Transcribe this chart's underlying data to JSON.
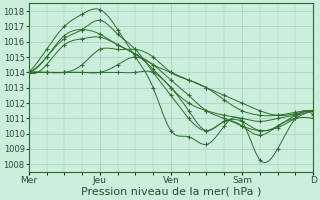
{
  "bg_color": "#cceedd",
  "grid_color": "#aaccbb",
  "line_color": "#2d6e2d",
  "marker_color": "#2d6e2d",
  "xlabel": "Pression niveau de la mer( hPa )",
  "xlabel_fontsize": 8,
  "ylim": [
    1007.5,
    1018.5
  ],
  "yticks": [
    1008,
    1009,
    1010,
    1011,
    1012,
    1013,
    1014,
    1015,
    1016,
    1017,
    1018
  ],
  "xtick_labels": [
    "Mer",
    "Jeu",
    "Ven",
    "Sam",
    "D"
  ],
  "xtick_positions": [
    0,
    24,
    48,
    72,
    96
  ],
  "xlim": [
    0,
    96
  ],
  "series": [
    {
      "points": [
        [
          0,
          1014.0
        ],
        [
          6,
          1014.5
        ],
        [
          12,
          1015.8
        ],
        [
          18,
          1016.2
        ],
        [
          24,
          1016.3
        ],
        [
          30,
          1015.8
        ],
        [
          36,
          1015.2
        ],
        [
          42,
          1014.5
        ],
        [
          48,
          1013.5
        ],
        [
          54,
          1012.5
        ],
        [
          60,
          1011.5
        ],
        [
          66,
          1011.0
        ],
        [
          72,
          1010.5
        ],
        [
          78,
          1010.2
        ],
        [
          84,
          1010.4
        ],
        [
          90,
          1011.0
        ],
        [
          96,
          1011.5
        ]
      ],
      "lw": 0.7
    },
    {
      "points": [
        [
          0,
          1014.0
        ],
        [
          6,
          1015.0
        ],
        [
          12,
          1016.2
        ],
        [
          18,
          1016.8
        ],
        [
          24,
          1017.4
        ],
        [
          30,
          1016.5
        ],
        [
          36,
          1015.5
        ],
        [
          42,
          1014.0
        ],
        [
          48,
          1012.5
        ],
        [
          54,
          1011.0
        ],
        [
          60,
          1010.2
        ],
        [
          66,
          1010.8
        ],
        [
          72,
          1010.8
        ],
        [
          78,
          1010.2
        ],
        [
          84,
          1010.5
        ],
        [
          90,
          1011.2
        ],
        [
          96,
          1011.5
        ]
      ],
      "lw": 0.7
    },
    {
      "points": [
        [
          0,
          1014.0
        ],
        [
          6,
          1015.5
        ],
        [
          12,
          1017.0
        ],
        [
          18,
          1017.8
        ],
        [
          24,
          1018.1
        ],
        [
          30,
          1016.8
        ],
        [
          36,
          1015.0
        ],
        [
          42,
          1013.0
        ],
        [
          48,
          1010.2
        ],
        [
          54,
          1009.8
        ],
        [
          60,
          1009.3
        ],
        [
          66,
          1010.5
        ],
        [
          72,
          1010.8
        ],
        [
          78,
          1008.3
        ],
        [
          84,
          1009.0
        ],
        [
          90,
          1011.0
        ],
        [
          96,
          1011.2
        ]
      ],
      "lw": 0.7
    },
    {
      "points": [
        [
          0,
          1014.0
        ],
        [
          6,
          1015.0
        ],
        [
          12,
          1016.4
        ],
        [
          18,
          1016.8
        ],
        [
          24,
          1016.5
        ],
        [
          30,
          1015.8
        ],
        [
          36,
          1015.2
        ],
        [
          42,
          1014.2
        ],
        [
          48,
          1013.0
        ],
        [
          54,
          1011.5
        ],
        [
          60,
          1010.2
        ],
        [
          66,
          1010.8
        ],
        [
          72,
          1010.5
        ],
        [
          78,
          1009.9
        ],
        [
          84,
          1010.5
        ],
        [
          90,
          1011.0
        ],
        [
          96,
          1011.0
        ]
      ],
      "lw": 0.7
    },
    {
      "points": [
        [
          0,
          1014.0
        ],
        [
          6,
          1014.0
        ],
        [
          12,
          1014.0
        ],
        [
          18,
          1014.5
        ],
        [
          24,
          1015.5
        ],
        [
          30,
          1015.5
        ],
        [
          36,
          1015.5
        ],
        [
          42,
          1015.0
        ],
        [
          48,
          1014.0
        ],
        [
          54,
          1013.5
        ],
        [
          60,
          1013.0
        ],
        [
          66,
          1012.2
        ],
        [
          72,
          1011.5
        ],
        [
          78,
          1011.2
        ],
        [
          84,
          1011.2
        ],
        [
          90,
          1011.4
        ],
        [
          96,
          1011.5
        ]
      ],
      "lw": 0.7
    },
    {
      "points": [
        [
          0,
          1014.0
        ],
        [
          6,
          1014.0
        ],
        [
          12,
          1014.0
        ],
        [
          18,
          1014.0
        ],
        [
          24,
          1014.0
        ],
        [
          30,
          1014.5
        ],
        [
          36,
          1015.0
        ],
        [
          42,
          1014.5
        ],
        [
          48,
          1014.0
        ],
        [
          54,
          1013.5
        ],
        [
          60,
          1013.0
        ],
        [
          66,
          1012.5
        ],
        [
          72,
          1012.0
        ],
        [
          78,
          1011.5
        ],
        [
          84,
          1011.2
        ],
        [
          90,
          1011.3
        ],
        [
          96,
          1011.5
        ]
      ],
      "lw": 0.7
    },
    {
      "points": [
        [
          0,
          1014.0
        ],
        [
          6,
          1014.0
        ],
        [
          12,
          1014.0
        ],
        [
          18,
          1014.0
        ],
        [
          24,
          1014.0
        ],
        [
          30,
          1014.0
        ],
        [
          36,
          1014.0
        ],
        [
          42,
          1014.0
        ],
        [
          48,
          1013.0
        ],
        [
          54,
          1012.0
        ],
        [
          60,
          1011.5
        ],
        [
          66,
          1011.2
        ],
        [
          72,
          1011.0
        ],
        [
          78,
          1010.8
        ],
        [
          84,
          1011.0
        ],
        [
          90,
          1011.2
        ],
        [
          96,
          1011.5
        ]
      ],
      "lw": 0.7
    }
  ]
}
